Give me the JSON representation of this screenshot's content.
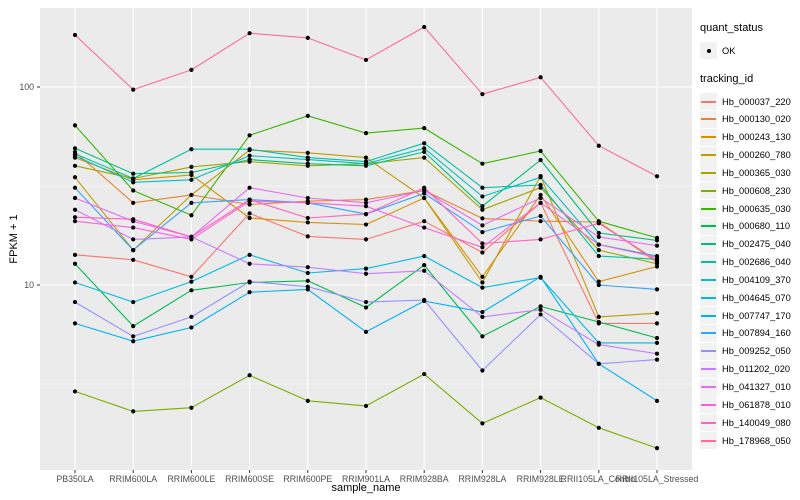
{
  "axes": {
    "x_title": "sample_name",
    "y_title": "FPKM + 1"
  },
  "legend": {
    "quant_status": {
      "title": "quant_status",
      "items": [
        {
          "label": "OK",
          "marker": "point-icon"
        }
      ]
    },
    "tracking": {
      "title": "tracking_id"
    }
  },
  "chart_data": {
    "type": "line",
    "title": "",
    "xlabel": "sample_name",
    "ylabel": "FPKM + 1",
    "y_scale": "log10",
    "grid": true,
    "legend_position": "right",
    "panel_bg": "#EBEBEB",
    "gridline_color": "#FFFFFF",
    "point_color": "#000000",
    "tick_label_color": "#4D4D4D",
    "ylim": [
      1.15,
      250
    ],
    "y_tick_values": [
      100,
      10
    ],
    "y_tick_labels": [
      "100",
      "10"
    ],
    "y_minor_gridlines": [
      31.62,
      3.162
    ],
    "categories": [
      "PB350LA",
      "RRIM600LA",
      "RRIM600LE",
      "RRIM600SE",
      "RRIM600PE",
      "RRIM901LA",
      "RRIM928BA",
      "RRIM928LA",
      "RRIM928LE",
      "RRII105LA_Control",
      "RRII105LA_Stressed"
    ],
    "series": [
      {
        "name": "Hb_000037_220",
        "color": "#F8766D",
        "values": [
          14.2,
          13.4,
          11.0,
          23.0,
          17.6,
          17.0,
          21.0,
          14.6,
          26.0,
          6.4,
          6.4
        ]
      },
      {
        "name": "Hb_000130_020",
        "color": "#EA8331",
        "values": [
          47.0,
          26.0,
          28.5,
          25.5,
          26.5,
          27.0,
          30.0,
          21.7,
          21.0,
          20.8,
          13.0
        ]
      },
      {
        "name": "Hb_000243_130",
        "color": "#D89000",
        "values": [
          44.0,
          34.0,
          36.0,
          21.8,
          20.7,
          20.2,
          27.5,
          11.0,
          28.5,
          10.4,
          12.4
        ]
      },
      {
        "name": "Hb_000260_780",
        "color": "#C09B00",
        "values": [
          35.0,
          15.0,
          28.5,
          48.0,
          46.5,
          44.0,
          27.5,
          10.3,
          35.5,
          6.9,
          7.2
        ]
      },
      {
        "name": "Hb_000365_030",
        "color": "#A3A500",
        "values": [
          40.0,
          34.5,
          39.5,
          42.0,
          40.0,
          41.0,
          44.0,
          24.0,
          31.0,
          15.0,
          12.8
        ]
      },
      {
        "name": "Hb_000608_230",
        "color": "#7CAE00",
        "values": [
          2.9,
          2.3,
          2.4,
          3.5,
          2.6,
          2.45,
          3.55,
          2.0,
          2.7,
          1.9,
          1.5
        ]
      },
      {
        "name": "Hb_000635_030",
        "color": "#39B600",
        "values": [
          64.0,
          30.0,
          22.5,
          57.0,
          71.5,
          58.5,
          62.0,
          41.0,
          47.5,
          21.0,
          17.3
        ]
      },
      {
        "name": "Hb_000680_110",
        "color": "#00BB4E",
        "values": [
          12.8,
          6.2,
          9.4,
          10.3,
          10.5,
          7.7,
          12.6,
          5.5,
          7.8,
          6.5,
          5.4
        ]
      },
      {
        "name": "Hb_002475_040",
        "color": "#00BF7D",
        "values": [
          49.0,
          36.5,
          37.0,
          43.0,
          41.0,
          40.0,
          47.0,
          25.0,
          42.8,
          18.3,
          16.8
        ]
      },
      {
        "name": "Hb_002686_040",
        "color": "#00C1A3",
        "values": [
          46.0,
          34.5,
          48.5,
          48.5,
          44.0,
          42.0,
          52.0,
          31.0,
          32.0,
          14.0,
          13.5
        ]
      },
      {
        "name": "Hb_004109_370",
        "color": "#00BFC4",
        "values": [
          45.0,
          33.0,
          34.0,
          45.0,
          43.0,
          41.0,
          49.0,
          28.0,
          35.0,
          16.0,
          14.0
        ]
      },
      {
        "name": "Hb_004645_070",
        "color": "#00BAE0",
        "values": [
          10.3,
          8.2,
          10.4,
          14.2,
          11.5,
          12.1,
          14.0,
          9.7,
          10.9,
          5.1,
          5.1
        ]
      },
      {
        "name": "Hb_007747_170",
        "color": "#00B0F6",
        "values": [
          6.4,
          5.2,
          6.1,
          9.2,
          9.5,
          5.8,
          8.3,
          7.3,
          11.0,
          4.0,
          2.6
        ]
      },
      {
        "name": "Hb_007894_160",
        "color": "#35A2FF",
        "values": [
          31.0,
          15.0,
          26.0,
          27.0,
          26.0,
          22.8,
          29.0,
          18.5,
          22.3,
          10.0,
          9.5
        ]
      },
      {
        "name": "Hb_009252_050",
        "color": "#9590FF",
        "values": [
          8.2,
          5.5,
          6.9,
          10.4,
          9.8,
          8.2,
          8.4,
          3.7,
          7.1,
          4.0,
          4.2
        ]
      },
      {
        "name": "Hb_011202_020",
        "color": "#C77CFF",
        "values": [
          24.0,
          17.0,
          17.5,
          12.8,
          12.3,
          11.4,
          11.8,
          6.9,
          7.5,
          5.0,
          4.5
        ]
      },
      {
        "name": "Hb_041327_010",
        "color": "#E76BF3",
        "values": [
          27.5,
          21.0,
          17.5,
          31.0,
          27.5,
          26.0,
          30.0,
          20.0,
          27.5,
          17.5,
          15.8
        ]
      },
      {
        "name": "Hb_061878_010",
        "color": "#FA62DB",
        "values": [
          21.0,
          19.5,
          17.0,
          26.5,
          26.0,
          25.0,
          19.5,
          15.5,
          26.0,
          16.0,
          13.8
        ]
      },
      {
        "name": "Hb_140049_080",
        "color": "#FF62BC",
        "values": [
          22.0,
          21.5,
          17.5,
          27.0,
          21.8,
          22.8,
          31.0,
          16.2,
          17.0,
          20.5,
          13.3
        ]
      },
      {
        "name": "Hb_178968_050",
        "color": "#FF6A98",
        "values": [
          183,
          97,
          122,
          187,
          177,
          137,
          201,
          92,
          112,
          50.5,
          35.4
        ]
      }
    ]
  }
}
